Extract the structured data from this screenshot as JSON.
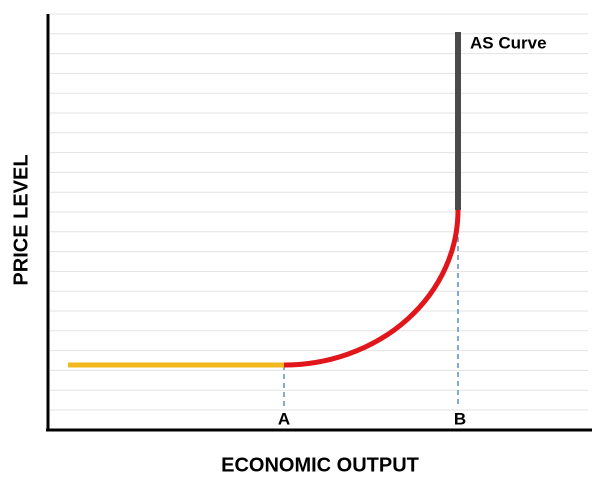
{
  "chart_data": {
    "type": "as-curve",
    "ylabel": "PRICE LEVEL",
    "xlabel": "ECONOMIC OUTPUT",
    "curve_label": "AS Curve",
    "points": [
      "A",
      "B"
    ],
    "colors": {
      "flat": "#f2b81e",
      "curve": "#e0161b",
      "vertical": "#4a4a4a",
      "guide": "#5b8fc7"
    },
    "grid": true
  }
}
